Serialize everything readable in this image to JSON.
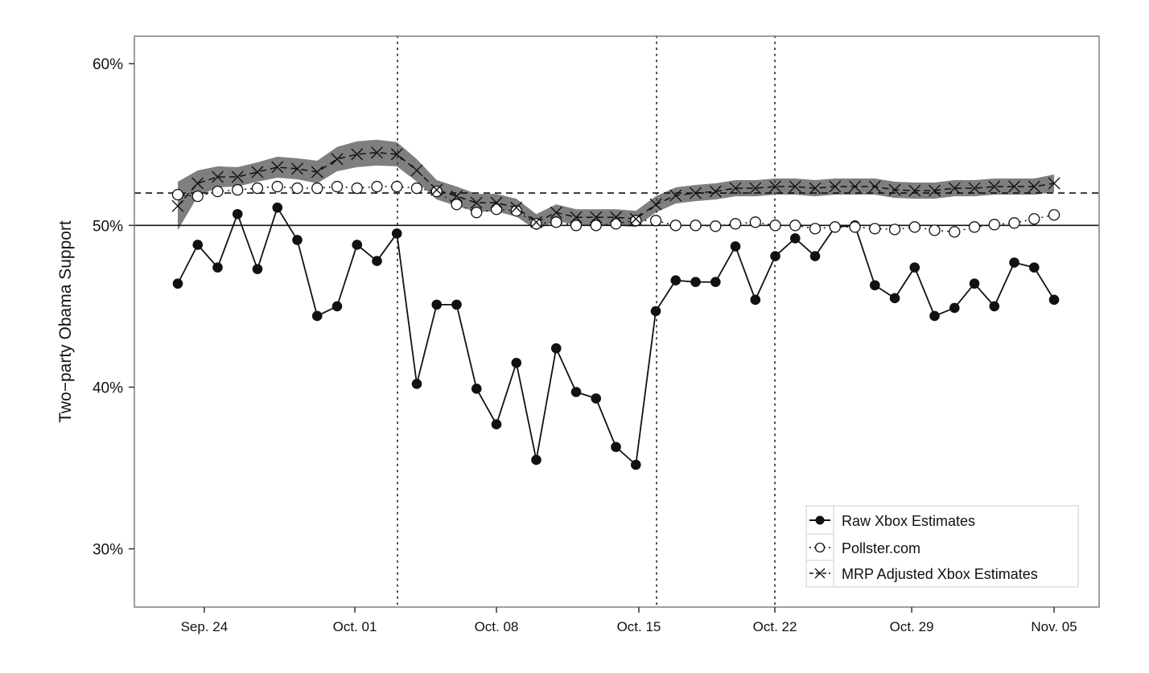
{
  "chart_data": {
    "type": "line",
    "title": "",
    "xlabel": "",
    "ylabel": "Two−party Obama Support",
    "ylim": [
      26.4,
      61.7
    ],
    "xlim": [
      -2.18,
      46.26
    ],
    "x_unit": "day index (daily estimates)",
    "yticks": [
      {
        "value": 30,
        "label": "30%"
      },
      {
        "value": 40,
        "label": "40%"
      },
      {
        "value": 50,
        "label": "50%"
      },
      {
        "value": 60,
        "label": "60%"
      }
    ],
    "xticks": [
      {
        "value": 1.33,
        "label": "Sep. 24"
      },
      {
        "value": 8.89,
        "label": "Oct. 01"
      },
      {
        "value": 16.0,
        "label": "Oct. 08"
      },
      {
        "value": 23.15,
        "label": "Oct. 15"
      },
      {
        "value": 29.98,
        "label": "Oct. 22"
      },
      {
        "value": 36.85,
        "label": "Oct. 29"
      },
      {
        "value": 44.0,
        "label": "Nov. 05"
      }
    ],
    "reference_lines": {
      "solid_horizontal": 50,
      "dashed_horizontal": 52,
      "dotted_vertical": [
        11.03,
        24.04,
        29.98
      ]
    },
    "grid": false,
    "legend_position": "bottom-right",
    "series": [
      {
        "name": "Raw Xbox Estimates",
        "marker": "filled-circle",
        "line": "solid",
        "values": [
          46.4,
          48.8,
          47.4,
          50.7,
          47.3,
          51.1,
          49.1,
          44.4,
          45.0,
          48.8,
          47.8,
          49.5,
          40.2,
          45.1,
          45.1,
          39.9,
          37.7,
          41.5,
          35.5,
          42.4,
          39.7,
          39.3,
          36.3,
          35.2,
          44.7,
          46.6,
          46.5,
          46.5,
          48.7,
          45.4,
          48.1,
          49.2,
          48.1,
          49.9,
          50.0,
          46.3,
          45.5,
          47.4,
          44.4,
          44.9,
          46.4,
          45.0,
          47.7,
          47.4,
          45.4
        ]
      },
      {
        "name": "Pollster.com",
        "marker": "open-circle",
        "line": "dotted",
        "values": [
          51.9,
          51.8,
          52.1,
          52.2,
          52.3,
          52.4,
          52.3,
          52.3,
          52.4,
          52.3,
          52.4,
          52.4,
          52.3,
          52.1,
          51.3,
          50.8,
          51.0,
          50.9,
          50.1,
          50.2,
          50.0,
          50.0,
          50.1,
          50.3,
          50.3,
          50.0,
          50.0,
          49.95,
          50.1,
          50.2,
          50.0,
          50.0,
          49.8,
          49.9,
          49.9,
          49.8,
          49.75,
          49.9,
          49.7,
          49.6,
          49.9,
          50.05,
          50.15,
          50.4,
          50.65
        ]
      },
      {
        "name": "MRP Adjusted Xbox Estimates",
        "marker": "x",
        "line": "dashed",
        "values": [
          51.2,
          52.6,
          53.0,
          53.0,
          53.3,
          53.6,
          53.5,
          53.3,
          54.1,
          54.4,
          54.5,
          54.4,
          53.4,
          52.2,
          51.8,
          51.4,
          51.4,
          51.1,
          50.2,
          50.8,
          50.5,
          50.5,
          50.5,
          50.4,
          51.3,
          51.85,
          52.0,
          52.1,
          52.3,
          52.3,
          52.4,
          52.4,
          52.3,
          52.4,
          52.4,
          52.4,
          52.2,
          52.15,
          52.15,
          52.3,
          52.3,
          52.4,
          52.4,
          52.4,
          52.6
        ],
        "ci_halfwidth": [
          1.5,
          0.8,
          0.65,
          0.6,
          0.6,
          0.65,
          0.65,
          0.7,
          0.75,
          0.8,
          0.8,
          0.75,
          0.7,
          0.6,
          0.6,
          0.55,
          0.55,
          0.55,
          0.5,
          0.5,
          0.5,
          0.5,
          0.5,
          0.5,
          0.5,
          0.5,
          0.5,
          0.5,
          0.5,
          0.5,
          0.5,
          0.5,
          0.5,
          0.5,
          0.5,
          0.5,
          0.5,
          0.5,
          0.5,
          0.5,
          0.5,
          0.5,
          0.5,
          0.5,
          0.55
        ]
      }
    ]
  },
  "colors": {
    "band": "#7f7f7f",
    "line": "#111111",
    "frame": "#7f7f7f"
  }
}
